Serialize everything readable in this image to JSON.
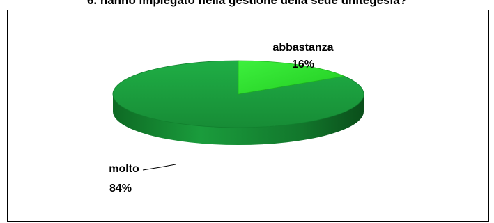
{
  "chart_data": {
    "type": "pie",
    "title": "6. hanno impiegato nella gestione della sede unitegesia?",
    "style": "3d",
    "slices": [
      {
        "label": "molto",
        "value": 84,
        "display": "84%",
        "color": "#1a9c3c"
      },
      {
        "label": "abbastanza",
        "value": 16,
        "display": "16%",
        "color": "#2fe02f"
      }
    ],
    "legend": "none"
  }
}
